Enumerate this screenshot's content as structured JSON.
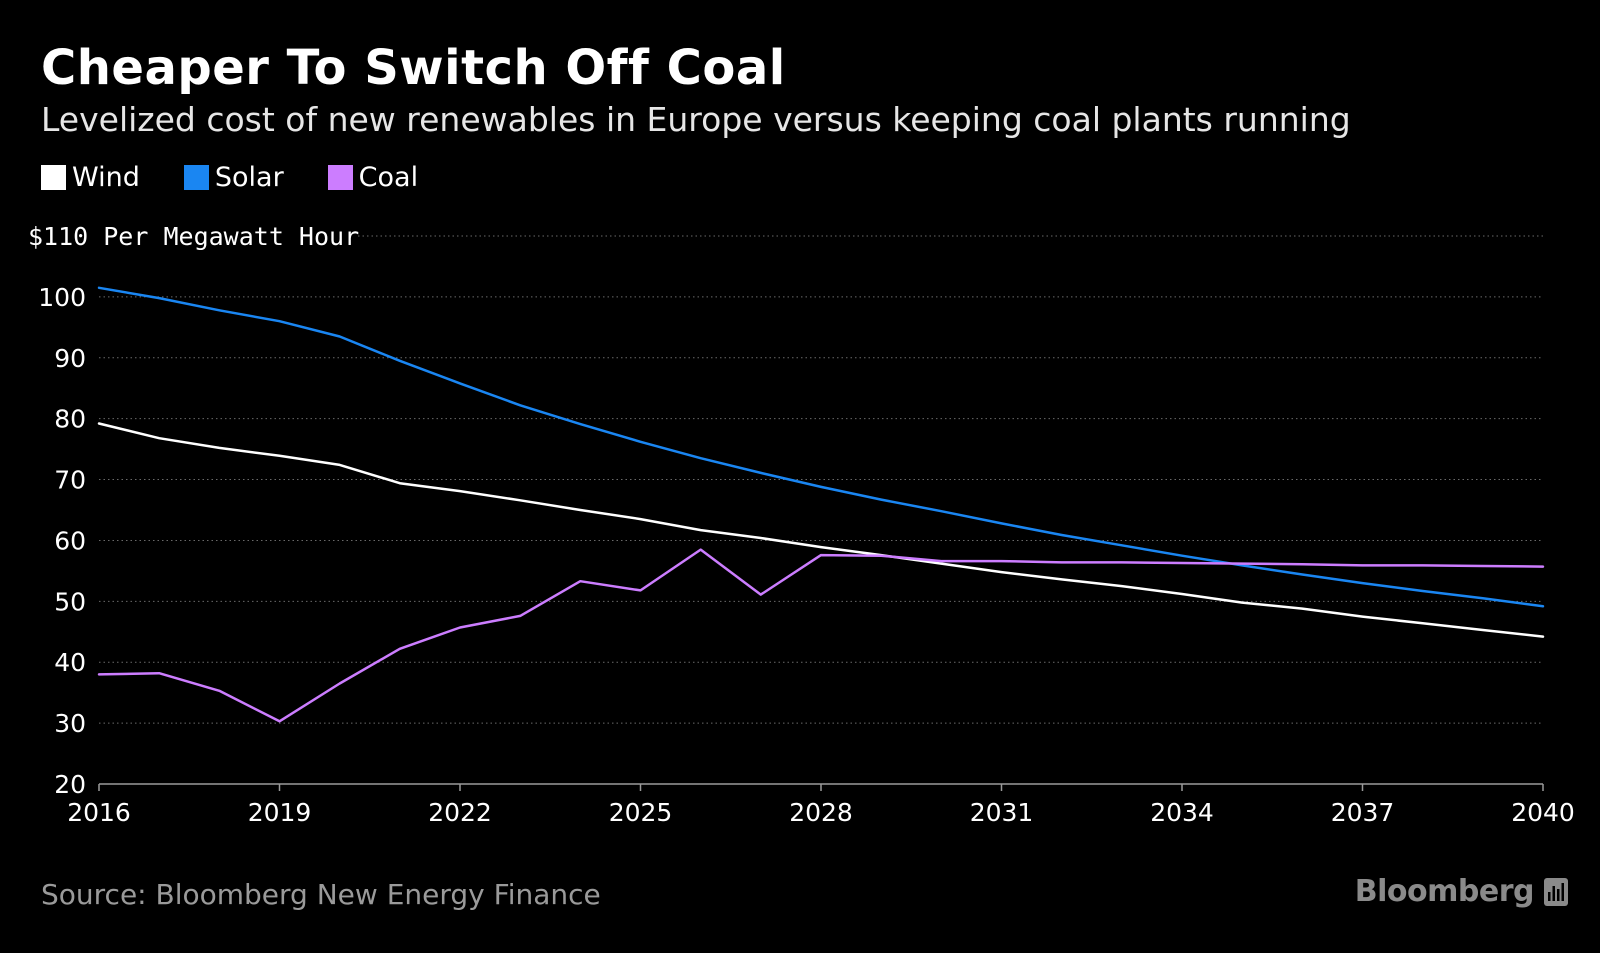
{
  "header": {
    "title": "Cheaper To Switch Off Coal",
    "subtitle": "Levelized cost of new renewables in Europe versus keeping coal plants running"
  },
  "legend": [
    {
      "name": "Wind",
      "color": "#ffffff"
    },
    {
      "name": "Solar",
      "color": "#1a86f2"
    },
    {
      "name": "Coal",
      "color": "#cc7dff"
    }
  ],
  "footer": {
    "source": "Source: Bloomberg New Energy Finance",
    "brand": "Bloomberg",
    "brand_icon": "bloomberg-terminal-icon"
  },
  "chart_data": {
    "type": "line",
    "title": "Cheaper To Switch Off Coal",
    "subtitle": "Levelized cost of new renewables in Europe versus keeping coal plants running",
    "xlabel": "",
    "ylabel": "$110 Per Megawatt Hour",
    "xlim": [
      2016,
      2040
    ],
    "ylim": [
      20,
      110
    ],
    "x_ticks": [
      2016,
      2019,
      2022,
      2025,
      2028,
      2031,
      2034,
      2037,
      2040
    ],
    "y_ticks": [
      20,
      30,
      40,
      50,
      60,
      70,
      80,
      90,
      100,
      110
    ],
    "y_tick_labels": [
      "20",
      "30",
      "40",
      "50",
      "60",
      "70",
      "80",
      "90",
      "100",
      "$110 Per Megawatt Hour"
    ],
    "grid": true,
    "legend_position": "top-left",
    "x": [
      2016,
      2017,
      2018,
      2019,
      2020,
      2021,
      2022,
      2023,
      2024,
      2025,
      2026,
      2027,
      2028,
      2029,
      2030,
      2031,
      2032,
      2033,
      2034,
      2035,
      2036,
      2037,
      2038,
      2039,
      2040
    ],
    "series": [
      {
        "name": "Wind",
        "color": "#ffffff",
        "values": [
          79.2,
          76.8,
          75.2,
          73.9,
          72.4,
          69.4,
          68.1,
          66.6,
          65.0,
          63.5,
          61.7,
          60.4,
          58.9,
          57.6,
          56.2,
          54.8,
          53.6,
          52.5,
          51.2,
          49.8,
          48.8,
          47.5,
          46.4,
          45.3,
          44.2
        ]
      },
      {
        "name": "Solar",
        "color": "#1a86f2",
        "values": [
          101.5,
          99.8,
          97.8,
          96.0,
          93.5,
          89.5,
          85.8,
          82.2,
          79.1,
          76.2,
          73.5,
          71.1,
          68.8,
          66.7,
          64.8,
          62.8,
          60.9,
          59.2,
          57.5,
          55.9,
          54.4,
          53.0,
          51.7,
          50.5,
          49.2
        ]
      },
      {
        "name": "Coal",
        "color": "#cc7dff",
        "values": [
          38.0,
          38.2,
          35.3,
          30.3,
          36.5,
          42.2,
          45.7,
          47.6,
          53.3,
          51.8,
          58.5,
          51.1,
          57.6,
          57.5,
          56.6,
          56.6,
          56.4,
          56.4,
          56.3,
          56.2,
          56.1,
          55.9,
          55.9,
          55.8,
          55.7
        ]
      }
    ]
  }
}
